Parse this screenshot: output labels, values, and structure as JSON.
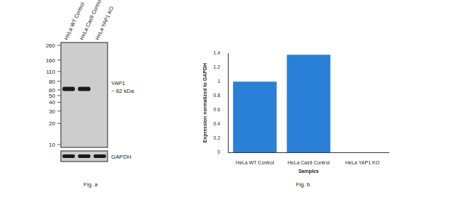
{
  "blot": {
    "caption": "Fig. a",
    "lanes": [
      "HeLa WT Control",
      "HeLa Cas9 Control",
      "HeLa YAP1 KO"
    ],
    "markers": [
      260,
      160,
      110,
      80,
      60,
      50,
      40,
      30,
      20,
      10
    ],
    "target": {
      "name": "YAP1",
      "label": "~ 62 kDa",
      "kda": 62,
      "present": [
        true,
        true,
        false
      ]
    },
    "loading_control": {
      "name": "GAPDH",
      "present": [
        true,
        true,
        true
      ]
    }
  },
  "chart_data": {
    "type": "bar",
    "caption": "Fig. b",
    "x_label": "Samples",
    "y_label": "Expression normalized to GAPDH",
    "categories": [
      "HeLa WT Control",
      "HeLa Cas9 Control",
      "HeLa YAP1 KO"
    ],
    "values": [
      1,
      1.38,
      0
    ],
    "color": "#2a7fd6",
    "ylim": [
      0,
      1.4
    ],
    "yticks": [
      0,
      0.2,
      0.4,
      0.6,
      0.8,
      1,
      1.2,
      1.4
    ],
    "grid": false
  }
}
